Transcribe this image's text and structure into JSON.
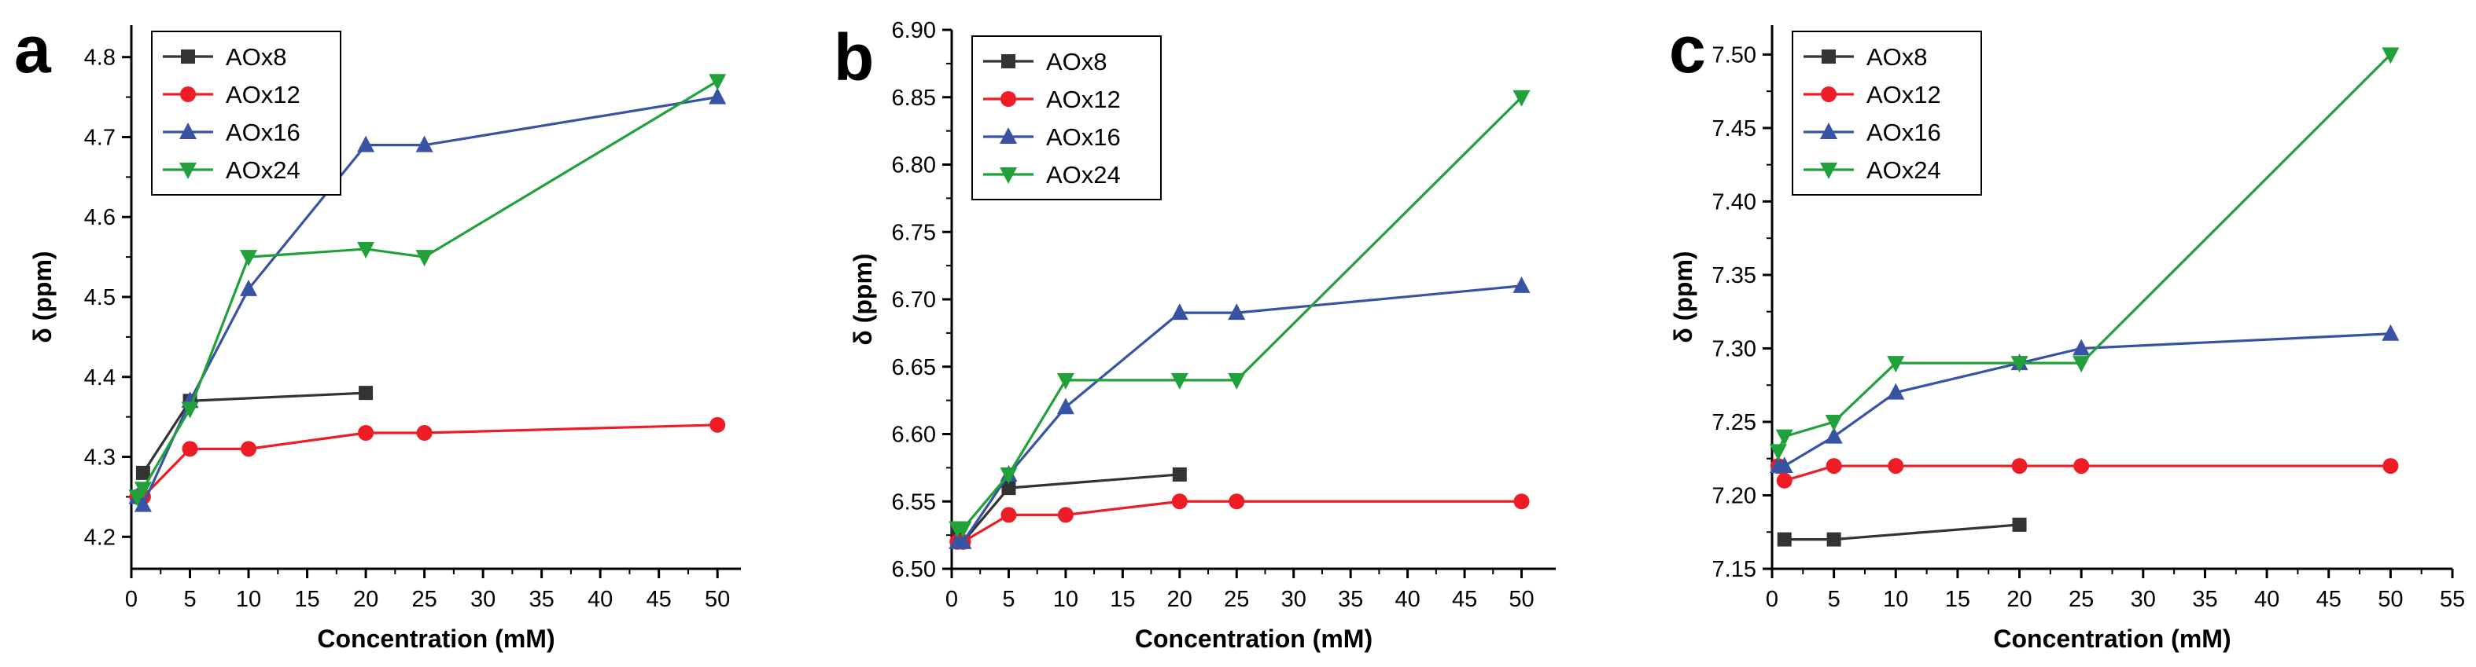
{
  "chart_data": [
    {
      "type": "line",
      "panel_label": "a",
      "xlabel": "Concentration (mM)",
      "ylabel": "δ (ppm)",
      "xlim": [
        0,
        52
      ],
      "ylim": [
        4.16,
        4.84
      ],
      "xticks": [
        0,
        5,
        10,
        15,
        20,
        25,
        30,
        35,
        40,
        45,
        50
      ],
      "yticks": [
        4.2,
        4.3,
        4.4,
        4.5,
        4.6,
        4.7,
        4.8
      ],
      "ytick_decimals": 1,
      "legend_position": "top-left",
      "series": [
        {
          "name": "AOx8",
          "color": "#333333",
          "marker": "square",
          "x": [
            1,
            5,
            20
          ],
          "y": [
            4.28,
            4.37,
            4.38
          ]
        },
        {
          "name": "AOx12",
          "color": "#ee1c25",
          "marker": "circle",
          "x": [
            0.5,
            1,
            5,
            10,
            20,
            25,
            50
          ],
          "y": [
            4.25,
            4.25,
            4.31,
            4.31,
            4.33,
            4.33,
            4.34
          ]
        },
        {
          "name": "AOx16",
          "color": "#3953a4",
          "marker": "triangle-up",
          "x": [
            0.5,
            1,
            5,
            10,
            20,
            25,
            50
          ],
          "y": [
            4.25,
            4.24,
            4.37,
            4.51,
            4.69,
            4.69,
            4.75
          ]
        },
        {
          "name": "AOx24",
          "color": "#21a13a",
          "marker": "triangle-down",
          "x": [
            0.5,
            1,
            5,
            10,
            20,
            25,
            50
          ],
          "y": [
            4.25,
            4.26,
            4.36,
            4.55,
            4.56,
            4.55,
            4.77
          ]
        }
      ]
    },
    {
      "type": "line",
      "panel_label": "b",
      "xlabel": "Concentration (mM)",
      "ylabel": "δ (ppm)",
      "xlim": [
        0,
        53
      ],
      "ylim": [
        6.5,
        6.9
      ],
      "xticks": [
        0,
        5,
        10,
        15,
        20,
        25,
        30,
        35,
        40,
        45,
        50
      ],
      "yticks": [
        6.5,
        6.55,
        6.6,
        6.65,
        6.7,
        6.75,
        6.8,
        6.85,
        6.9
      ],
      "ytick_decimals": 2,
      "legend_position": "top-left",
      "series": [
        {
          "name": "AOx8",
          "color": "#333333",
          "marker": "square",
          "x": [
            0.5,
            1,
            5,
            20
          ],
          "y": [
            6.53,
            6.52,
            6.56,
            6.57
          ]
        },
        {
          "name": "AOx12",
          "color": "#ee1c25",
          "marker": "circle",
          "x": [
            0.5,
            1,
            5,
            10,
            20,
            25,
            50
          ],
          "y": [
            6.52,
            6.52,
            6.54,
            6.54,
            6.55,
            6.55,
            6.55
          ]
        },
        {
          "name": "AOx16",
          "color": "#3953a4",
          "marker": "triangle-up",
          "x": [
            0.5,
            1,
            5,
            10,
            20,
            25,
            50
          ],
          "y": [
            6.52,
            6.52,
            6.57,
            6.62,
            6.69,
            6.69,
            6.71
          ]
        },
        {
          "name": "AOx24",
          "color": "#21a13a",
          "marker": "triangle-down",
          "x": [
            0.5,
            1,
            5,
            10,
            20,
            25,
            50
          ],
          "y": [
            6.53,
            6.53,
            6.57,
            6.64,
            6.64,
            6.64,
            6.85
          ]
        }
      ]
    },
    {
      "type": "line",
      "panel_label": "c",
      "xlabel": "Concentration (mM)",
      "ylabel": "δ (ppm)",
      "xlim": [
        0,
        55
      ],
      "ylim": [
        7.15,
        7.52
      ],
      "xticks": [
        0,
        5,
        10,
        15,
        20,
        25,
        30,
        35,
        40,
        45,
        50,
        55
      ],
      "yticks": [
        7.15,
        7.2,
        7.25,
        7.3,
        7.35,
        7.4,
        7.45,
        7.5
      ],
      "ytick_decimals": 2,
      "legend_position": "top-left",
      "series": [
        {
          "name": "AOx8",
          "color": "#333333",
          "marker": "square",
          "x": [
            1,
            5,
            20
          ],
          "y": [
            7.17,
            7.17,
            7.18
          ]
        },
        {
          "name": "AOx12",
          "color": "#ee1c25",
          "marker": "circle",
          "x": [
            0.5,
            1,
            5,
            10,
            20,
            25,
            50
          ],
          "y": [
            7.22,
            7.21,
            7.22,
            7.22,
            7.22,
            7.22,
            7.22
          ]
        },
        {
          "name": "AOx16",
          "color": "#3953a4",
          "marker": "triangle-up",
          "x": [
            0.5,
            1,
            5,
            10,
            20,
            25,
            50
          ],
          "y": [
            7.22,
            7.22,
            7.24,
            7.27,
            7.29,
            7.3,
            7.31
          ]
        },
        {
          "name": "AOx24",
          "color": "#21a13a",
          "marker": "triangle-down",
          "x": [
            0.5,
            1,
            5,
            10,
            20,
            25,
            50
          ],
          "y": [
            7.23,
            7.24,
            7.25,
            7.29,
            7.29,
            7.29,
            7.5
          ]
        }
      ]
    }
  ]
}
